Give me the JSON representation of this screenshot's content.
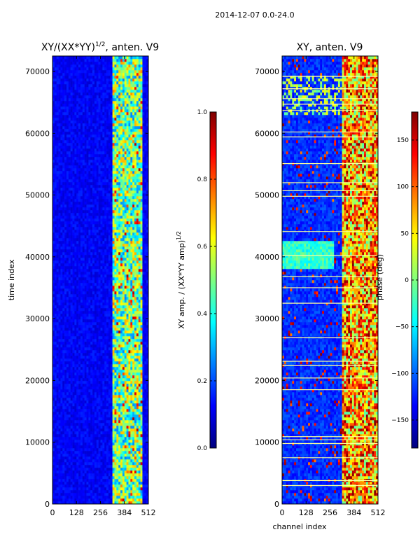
{
  "figure_title": "2014-12-07 0.0-24.0",
  "colors": {
    "jet": [
      "#00007f",
      "#0000ff",
      "#007fff",
      "#00ffff",
      "#7fff7f",
      "#ffff00",
      "#ff7f00",
      "#ff0000",
      "#7f0000"
    ],
    "frame": "#000000",
    "gap_line": "#ffff99"
  },
  "chart_data": [
    {
      "type": "heatmap",
      "title": "XY/(XX*YY)",
      "title_superscript": "1/2",
      "title_suffix": ", anten. V9",
      "xlabel": "",
      "ylabel": "time index",
      "xlim": [
        0,
        512
      ],
      "ylim": [
        0,
        72500
      ],
      "xticks": [
        0,
        128,
        256,
        384,
        512
      ],
      "xtick_labels": [
        "0",
        "128",
        "256",
        "384",
        "512"
      ],
      "yticks": [
        0,
        10000,
        20000,
        30000,
        40000,
        50000,
        60000,
        70000
      ],
      "ytick_labels": [
        "0",
        "10000",
        "20000",
        "30000",
        "40000",
        "50000",
        "60000",
        "70000"
      ],
      "description": "amplitude mostly low (deep blue) for channels 0-320; high, striped values (cyan-yellow-red) in channels ~320-480",
      "active_channel_range": [
        320,
        480
      ],
      "colorbar": {
        "label": "XY amp. / (XX*YY amp)",
        "label_superscript": "1/2",
        "range": [
          0.0,
          1.0
        ],
        "ticks": [
          0.0,
          0.2,
          0.4,
          0.6,
          0.8,
          1.0
        ],
        "tick_labels": [
          "0.0",
          "0.2",
          "0.4",
          "0.6",
          "0.8",
          "1.0"
        ]
      }
    },
    {
      "type": "heatmap",
      "title": "XY, anten. V9",
      "xlabel": "channel index",
      "ylabel": "",
      "xlim": [
        0,
        512
      ],
      "ylim": [
        0,
        72500
      ],
      "xticks": [
        0,
        128,
        256,
        384,
        512
      ],
      "xtick_labels": [
        "0",
        "128",
        "256",
        "384",
        "512"
      ],
      "yticks": [
        0,
        10000,
        20000,
        30000,
        40000,
        50000,
        60000,
        70000
      ],
      "ytick_labels": [
        "0",
        "10000",
        "20000",
        "30000",
        "40000",
        "50000",
        "60000",
        "70000"
      ],
      "description": "phase mostly around -150 deg (blue) for channels 0-320; mixed -50 to 180 deg (green-red) in channels ~320-512; green band near time 38000-42000; horizontal gap lines",
      "active_channel_range": [
        320,
        512
      ],
      "gap_rows": [
        3000,
        3800,
        7500,
        9800,
        10400,
        10900,
        18500,
        20400,
        22400,
        23100,
        26900,
        32500,
        35000,
        36800,
        40200,
        44100,
        49800,
        50700,
        52000,
        55100,
        59400,
        60200,
        63700,
        64700,
        65600,
        67200,
        69200
      ],
      "colorbar": {
        "label": "phase (deg)",
        "range": [
          -180,
          180
        ],
        "ticks": [
          -150,
          -100,
          -50,
          0,
          50,
          100,
          150
        ],
        "tick_labels": [
          "−150",
          "−100",
          "−50",
          "0",
          "50",
          "100",
          "150"
        ]
      }
    }
  ]
}
